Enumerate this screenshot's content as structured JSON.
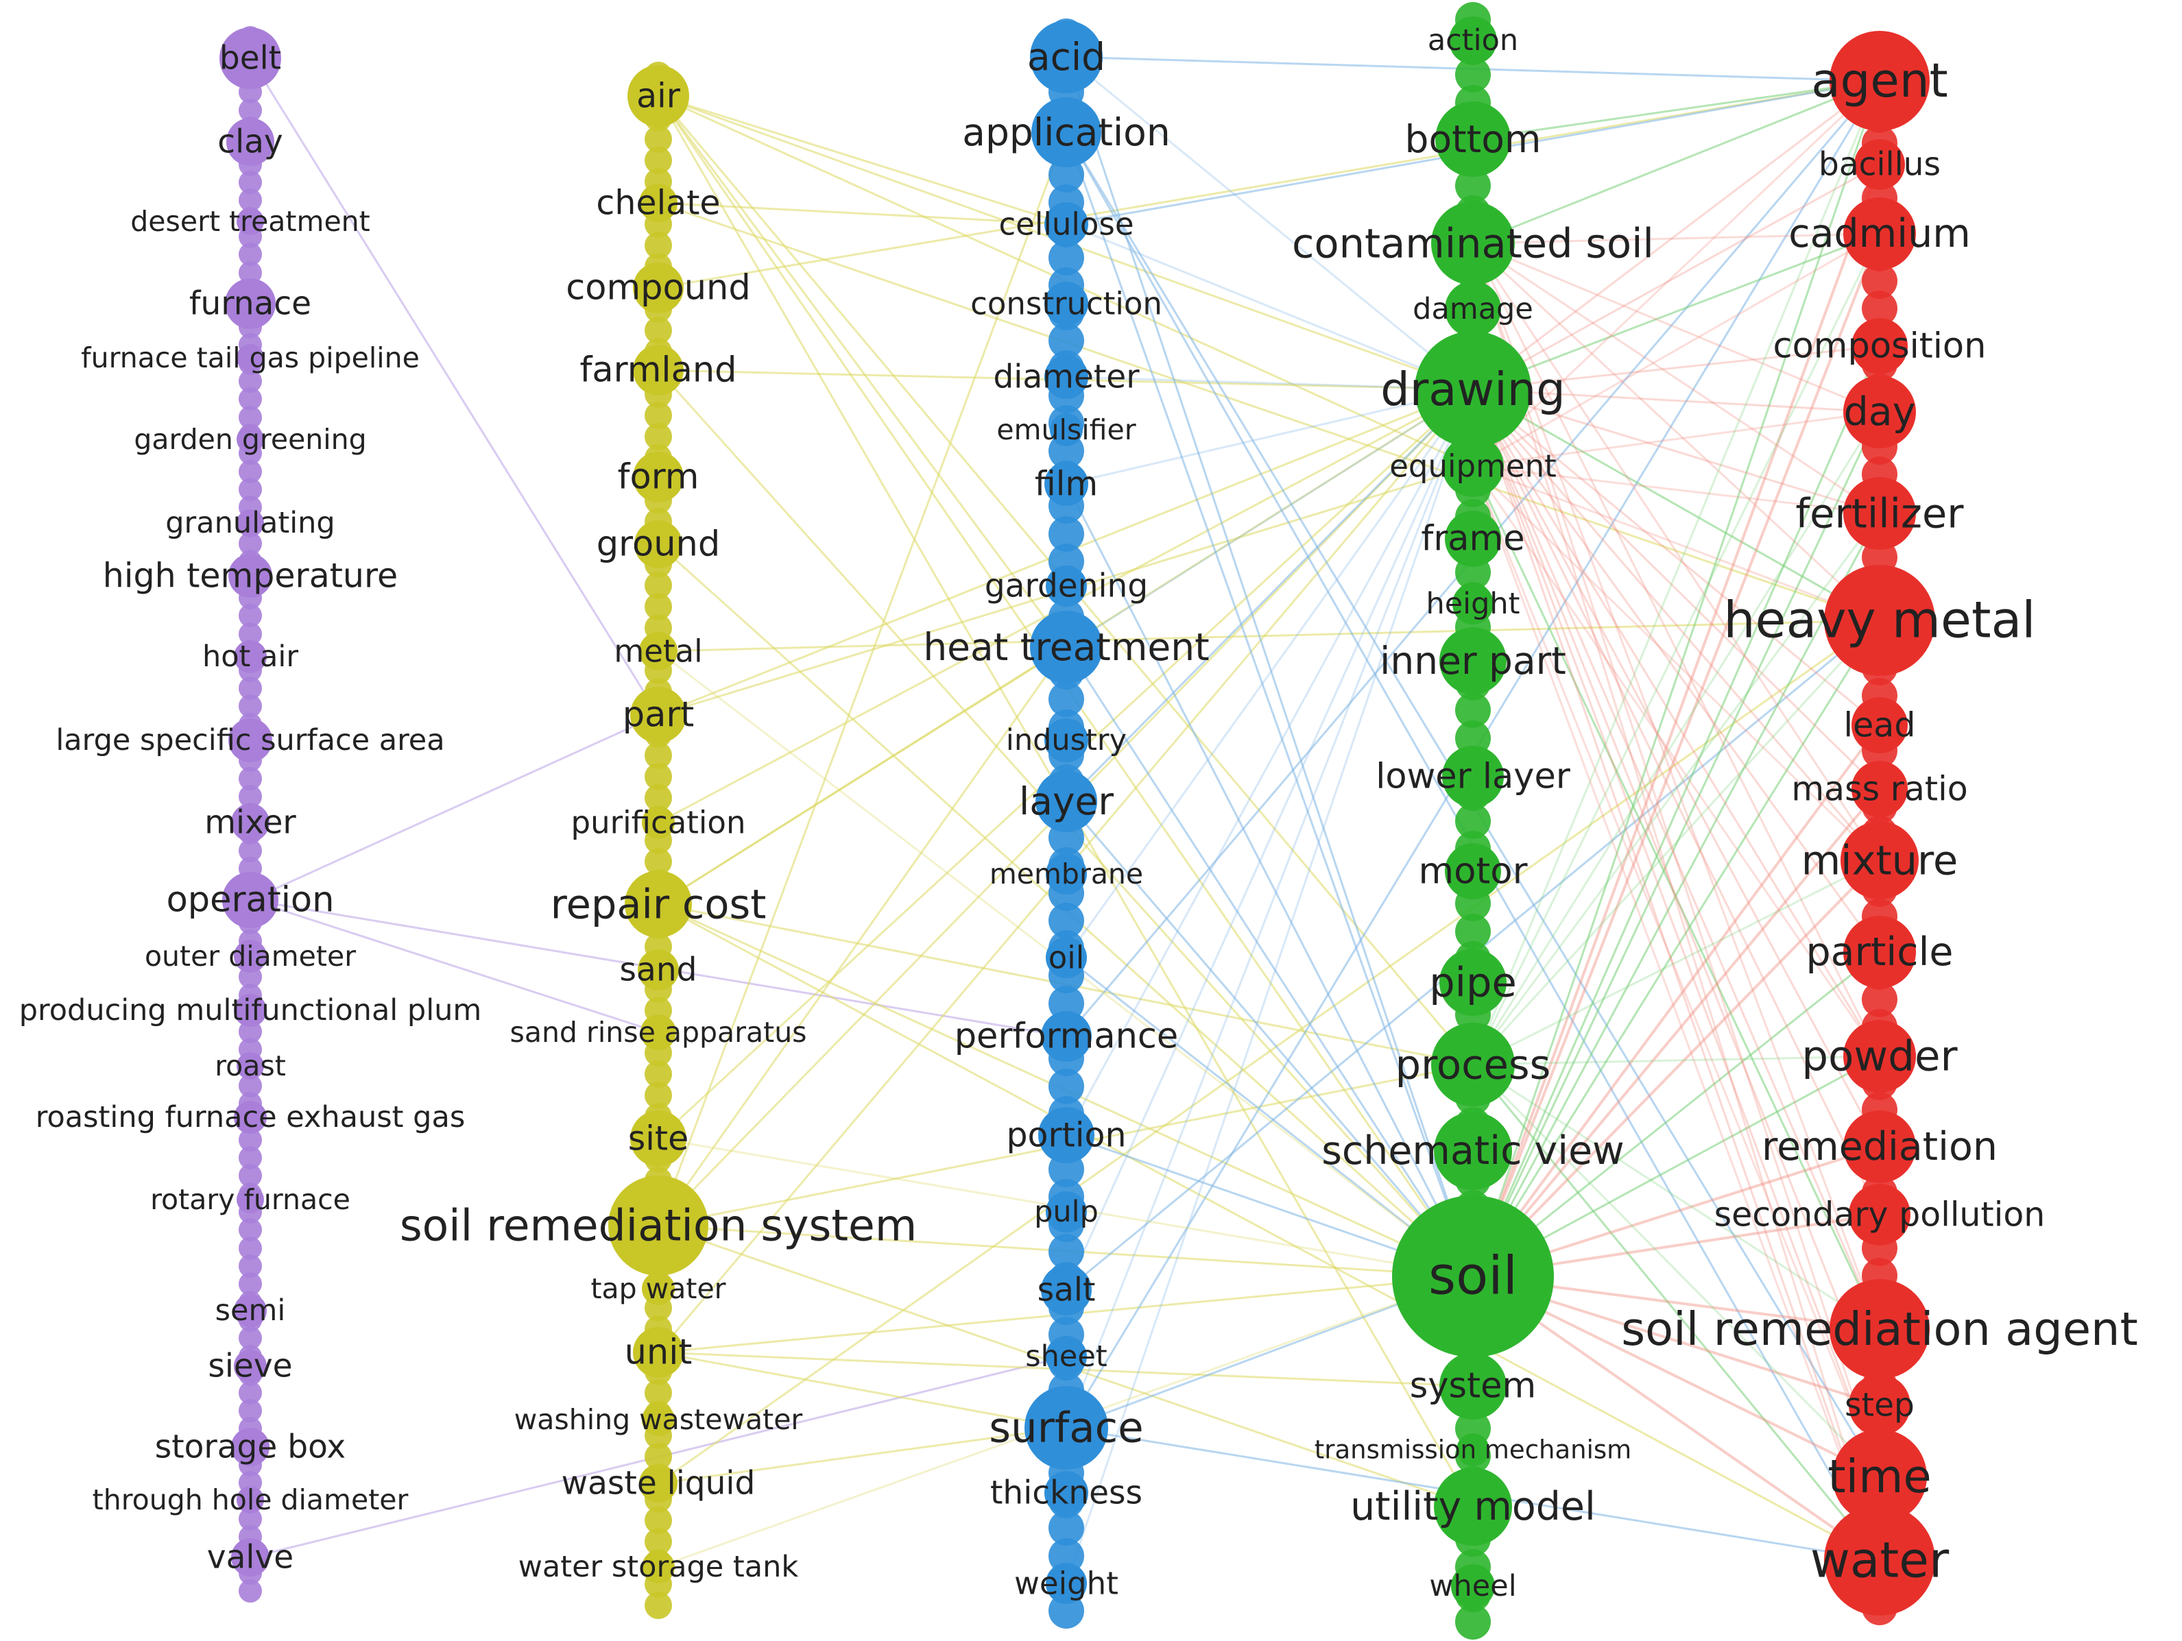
{
  "clusters": [
    {
      "color": "#a97fd9",
      "nodes": [
        "belt",
        "clay",
        "desert treatment",
        "furnace",
        "furnace tail gas pipeline",
        "garden greening",
        "granulating",
        "high temperature",
        "hot air",
        "large specific surface area",
        "mixer",
        "operation",
        "outer diameter",
        "producing multifunctional plum",
        "roast",
        "roasting furnace exhaust gas",
        "rotary furnace",
        "semi",
        "sieve",
        "storage box",
        "through hole diameter",
        "valve"
      ]
    },
    {
      "color": "#c9c628",
      "nodes": [
        "air",
        "chelate",
        "compound",
        "farmland",
        "form",
        "ground",
        "metal",
        "part",
        "purification",
        "repair cost",
        "sand",
        "sand rinse apparatus",
        "site",
        "soil remediation system",
        "tap water",
        "unit",
        "washing wastewater",
        "waste liquid",
        "water storage tank"
      ]
    },
    {
      "color": "#2f8fd9",
      "nodes": [
        "acid",
        "application",
        "cellulose",
        "construction",
        "diameter",
        "emulsifier",
        "film",
        "gardening",
        "heat treatment",
        "industry",
        "layer",
        "membrane",
        "oil",
        "performance",
        "portion",
        "pulp",
        "salt",
        "sheet",
        "surface",
        "thickness",
        "weight"
      ]
    },
    {
      "color": "#2eb52e",
      "nodes": [
        "action",
        "bottom",
        "contaminated soil",
        "damage",
        "drawing",
        "equipment",
        "frame",
        "height",
        "inner part",
        "lower layer",
        "motor",
        "pipe",
        "process",
        "schematic view",
        "soil",
        "system",
        "transmission mechanism",
        "utility model",
        "wheel"
      ]
    },
    {
      "color": "#e8302b",
      "nodes": [
        "agent",
        "bacillus",
        "cadmium",
        "composition",
        "day",
        "fertilizer",
        "heavy metal",
        "lead",
        "mass ratio",
        "mixture",
        "particle",
        "powder",
        "remediation",
        "secondary pollution",
        "soil remediation agent",
        "step",
        "time",
        "water"
      ]
    }
  ]
}
